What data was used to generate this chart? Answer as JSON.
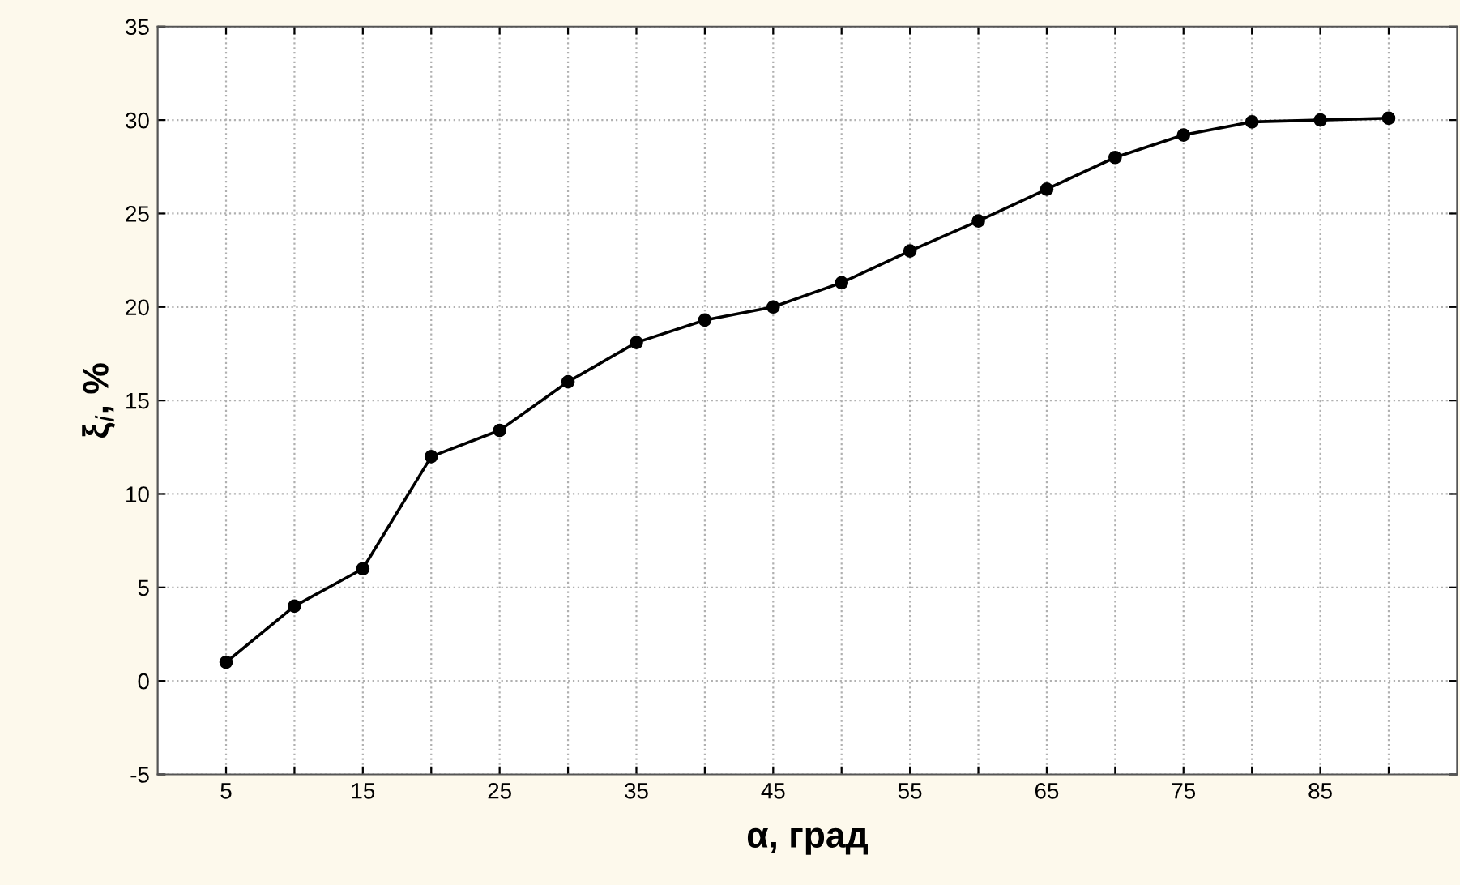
{
  "chart_data": {
    "type": "line",
    "xlabel": "α, град",
    "ylabel": "ξ$_{i}$, %",
    "x": [
      5,
      10,
      15,
      20,
      25,
      30,
      35,
      40,
      45,
      50,
      55,
      60,
      65,
      70,
      75,
      80,
      85,
      90
    ],
    "series": [
      {
        "color": "#000000",
        "values": [
          1.0,
          4.0,
          6.0,
          12.0,
          13.4,
          16.0,
          18.1,
          19.3,
          20.0,
          21.3,
          23.0,
          24.6,
          26.3,
          28.0,
          29.2,
          29.9,
          30.0,
          30.1
        ]
      }
    ],
    "xlim": [
      0,
      95
    ],
    "xticks": [
      5,
      {
        "value": 10,
        "label": null
      },
      15,
      {
        "value": 20,
        "label": null
      },
      25,
      {
        "value": 30,
        "label": null
      },
      35,
      {
        "value": 40,
        "label": null
      },
      45,
      {
        "value": 50,
        "label": null
      },
      55,
      {
        "value": 60,
        "label": null
      },
      65,
      {
        "value": 70,
        "label": null
      },
      75,
      {
        "value": 80,
        "label": null
      },
      85,
      {
        "value": 90,
        "label": null
      }
    ],
    "ylim": [
      -5,
      35
    ],
    "yticks": [
      -5,
      0,
      5,
      10,
      15,
      20,
      25,
      30,
      35
    ],
    "grid": true,
    "marker": "circle",
    "line_style": "solid"
  }
}
